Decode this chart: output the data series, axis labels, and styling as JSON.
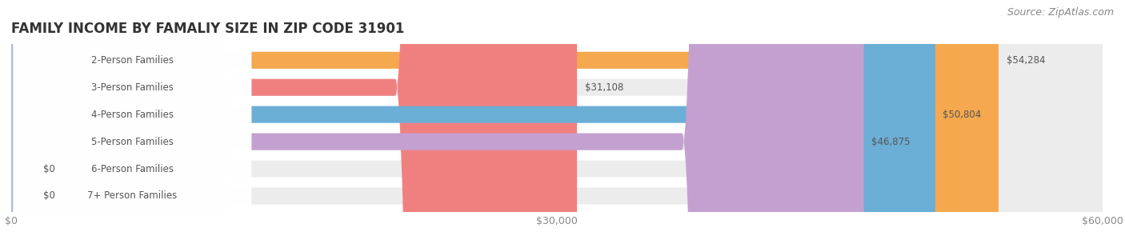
{
  "title": "FAMILY INCOME BY FAMALIY SIZE IN ZIP CODE 31901",
  "source": "Source: ZipAtlas.com",
  "categories": [
    "2-Person Families",
    "3-Person Families",
    "4-Person Families",
    "5-Person Families",
    "6-Person Families",
    "7+ Person Families"
  ],
  "values": [
    54284,
    31108,
    50804,
    46875,
    0,
    0
  ],
  "bar_colors": [
    "#F5A84E",
    "#F08080",
    "#6BAED6",
    "#C4A0D0",
    "#5BC8B8",
    "#B0B8E8"
  ],
  "bar_bg_color": "#ECECEC",
  "xlim": [
    0,
    60000
  ],
  "xticks": [
    0,
    30000,
    60000
  ],
  "xtick_labels": [
    "$0",
    "$30,000",
    "$60,000"
  ],
  "value_labels": [
    "$54,284",
    "$31,108",
    "$50,804",
    "$46,875",
    "$0",
    "$0"
  ],
  "background_color": "#FFFFFF",
  "title_fontsize": 12,
  "label_fontsize": 8.5,
  "tick_fontsize": 9,
  "source_fontsize": 9
}
